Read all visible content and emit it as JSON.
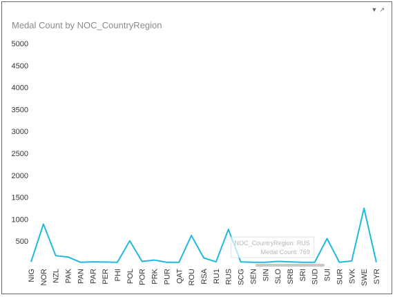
{
  "window": {
    "title": "Medal Count by NOC_CountryRegion",
    "icons": [
      "filter-icon",
      "expand-icon"
    ],
    "filter_glyph": "▼",
    "expand_glyph": "↗"
  },
  "tooltip": {
    "line1": "NOC_CountryRegion: RUS",
    "line2": "Medal Count: 769"
  },
  "chart_data": {
    "type": "line",
    "title": "Medal Count by NOC_CountryRegion",
    "xlabel": "",
    "ylabel": "",
    "ylim": [
      0,
      5000
    ],
    "yticks": [
      500,
      1000,
      1500,
      2000,
      2500,
      3000,
      3500,
      4000,
      4500,
      5000
    ],
    "grid": false,
    "line_color": "#1fb8e0",
    "categories": [
      "NIG",
      "NOR",
      "NZL",
      "PAK",
      "PAN",
      "PAR",
      "PER",
      "PHI",
      "POL",
      "POR",
      "PRK",
      "PUR",
      "QAT",
      "ROU",
      "RSA",
      "RU1",
      "RUS",
      "SCG",
      "SEN",
      "SIN",
      "SLO",
      "SRB",
      "SRI",
      "SUD",
      "SUI",
      "SUR",
      "SVK",
      "SWE",
      "SYR"
    ],
    "series": [
      {
        "values": [
          30,
          890,
          170,
          140,
          20,
          30,
          25,
          20,
          510,
          40,
          70,
          20,
          20,
          630,
          120,
          30,
          769,
          30,
          20,
          20,
          40,
          30,
          20,
          20,
          560,
          20,
          50,
          1250,
          20
        ]
      }
    ]
  }
}
